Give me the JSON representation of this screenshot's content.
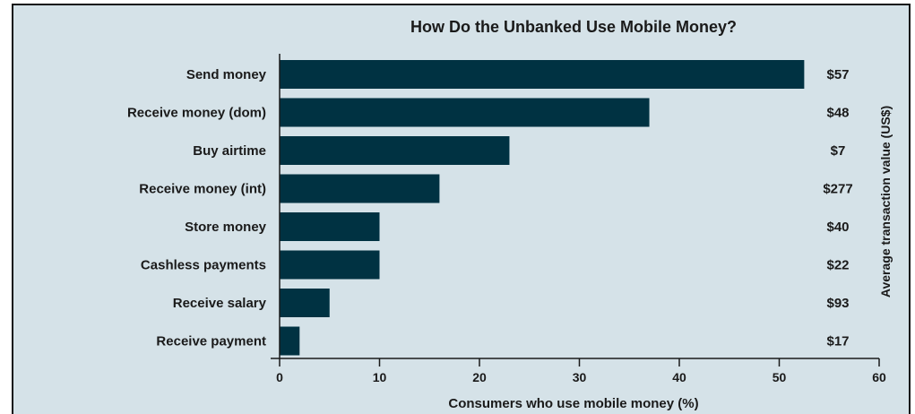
{
  "chart_data": {
    "type": "bar",
    "orientation": "horizontal",
    "title": "How Do the Unbanked Use Mobile Money?",
    "xlabel": "Consumers who use mobile money (%)",
    "secondary_label": "Average transaction value (US$)",
    "xlim": [
      0,
      60
    ],
    "xticks": [
      "0",
      "10",
      "20",
      "30",
      "40",
      "50",
      "60"
    ],
    "categories": [
      "Send money",
      "Receive money (dom)",
      "Buy airtime",
      "Receive money (int)",
      "Store money",
      "Cashless payments",
      "Receive salary",
      "Receive payment"
    ],
    "values": [
      52.5,
      37,
      23,
      16,
      10,
      10,
      5,
      2
    ],
    "transaction_values": [
      "$57",
      "$48",
      "$7",
      "$277",
      "$40",
      "$22",
      "$93",
      "$17"
    ],
    "bar_color": "#003242",
    "background_color": "#d5e2e8",
    "grid": false
  }
}
